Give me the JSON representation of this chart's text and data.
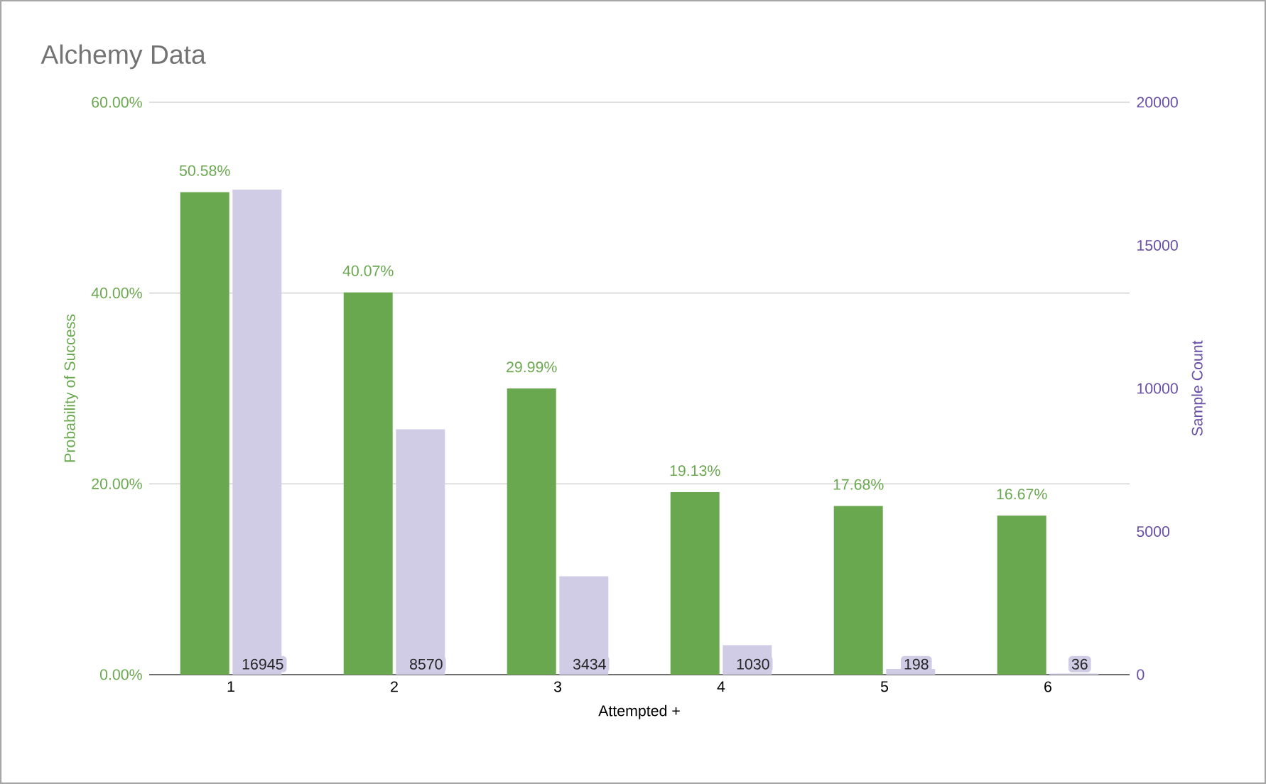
{
  "chart_data": {
    "type": "bar",
    "title": "Alchemy Data",
    "xlabel": "Attempted +",
    "ylabel": "Probability of Success",
    "y2label": "Sample Count",
    "categories": [
      "1",
      "2",
      "3",
      "4",
      "5",
      "6"
    ],
    "series": [
      {
        "color": "#6aa84f",
        "values": [
          50.58,
          40.07,
          29.99,
          19.13,
          17.68,
          16.67
        ],
        "value_labels": [
          "50.58%",
          "40.07%",
          "29.99%",
          "19.13%",
          "17.68%",
          "16.67%"
        ]
      },
      {
        "color": "#d0cce6",
        "axis": "y2",
        "values": [
          16945,
          8570,
          3434,
          1030,
          198,
          36
        ],
        "value_labels": [
          "16945",
          "8570",
          "3434",
          "1030",
          "198",
          "36"
        ]
      }
    ],
    "ylim": [
      0,
      60
    ],
    "yticks": [
      {
        "value": 0,
        "label": "0.00%"
      },
      {
        "value": 20,
        "label": "20.00%"
      },
      {
        "value": 40,
        "label": "40.00%"
      },
      {
        "value": 60,
        "label": "60.00%"
      }
    ],
    "y2lim": [
      0,
      20000
    ],
    "y2ticks": [
      0,
      5000,
      10000,
      15000,
      20000
    ],
    "grid": "y"
  }
}
